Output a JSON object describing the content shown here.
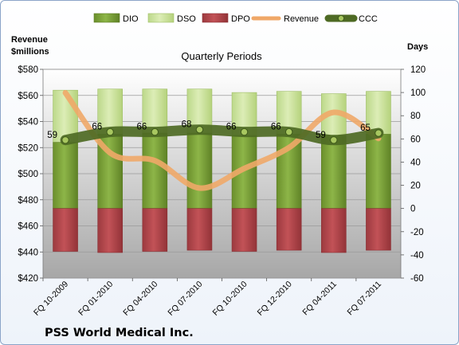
{
  "chart_data": {
    "type": "bar",
    "title": "Quarterly Periods",
    "company": "PSS World Medical Inc.",
    "left_axis": {
      "label_line1": "Revenue",
      "label_line2": "$millions",
      "range": [
        420,
        580
      ],
      "ticks": [
        "$580",
        "$560",
        "$540",
        "$520",
        "$500",
        "$480",
        "$460",
        "$440",
        "$420"
      ]
    },
    "right_axis": {
      "label": "Days",
      "range": [
        -60,
        120
      ],
      "ticks": [
        "120",
        "100",
        "80",
        "60",
        "40",
        "20",
        "0",
        "-20",
        "-40",
        "-60"
      ]
    },
    "categories": [
      "FQ 10-2009",
      "FQ 01-2010",
      "FQ 04-2010",
      "FQ 07-2010",
      "FQ 10-2010",
      "FQ 12-2010",
      "FQ 04-2011",
      "FQ 07-2011"
    ],
    "series": [
      {
        "name": "DIO",
        "color": "#7fa339",
        "values": [
          57,
          64,
          65,
          65,
          63,
          64,
          63,
          64
        ]
      },
      {
        "name": "DSO",
        "color": "#cfe59a",
        "values": [
          45,
          39,
          38,
          38,
          37,
          37,
          36,
          37
        ]
      },
      {
        "name": "DPO",
        "color": "#b8474c",
        "values": [
          -37,
          -38,
          -37,
          -36,
          -37,
          -36,
          -38,
          -36
        ]
      },
      {
        "name": "Revenue",
        "color": "#f0a868",
        "values": [
          562,
          516,
          510,
          489,
          504,
          520,
          547,
          527
        ]
      },
      {
        "name": "CCC",
        "color": "#4e6a24",
        "values": [
          59,
          66,
          66,
          68,
          66,
          66,
          59,
          65
        ],
        "labels": [
          "59",
          "66",
          "66",
          "68",
          "66",
          "66",
          "59",
          "65"
        ]
      }
    ],
    "legend_position": "top"
  }
}
